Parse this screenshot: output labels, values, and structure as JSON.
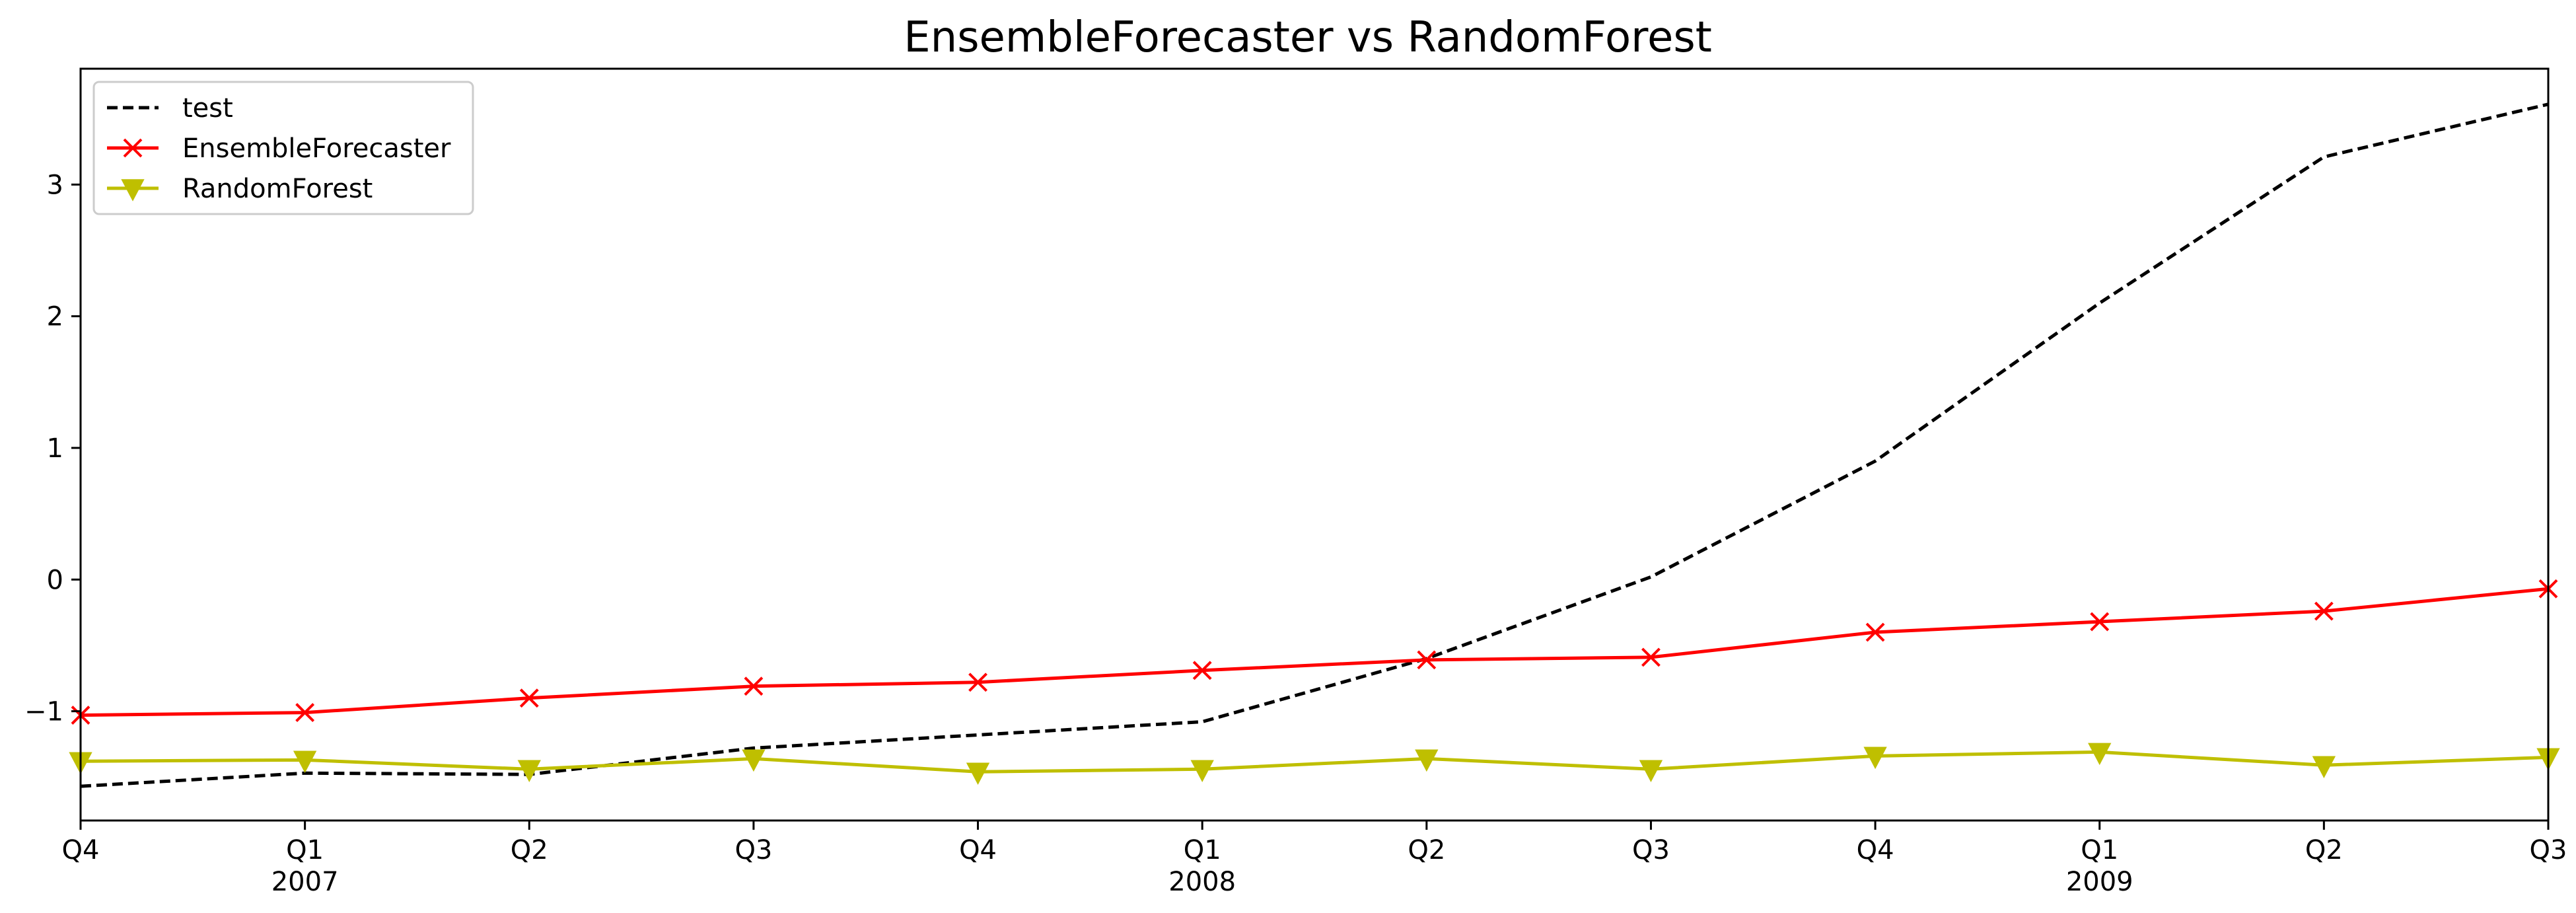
{
  "chart_data": {
    "type": "line",
    "title": "EnsembleForecaster vs RandomForest",
    "xlabel": "",
    "ylabel": "",
    "x": [
      "Q4",
      "Q1",
      "Q2",
      "Q3",
      "Q4",
      "Q1",
      "Q2",
      "Q3",
      "Q4",
      "Q1",
      "Q2",
      "Q3"
    ],
    "x_year_labels": [
      "",
      "2007",
      "",
      "",
      "",
      "2008",
      "",
      "",
      "",
      "2009",
      "",
      ""
    ],
    "ylim": [
      -1.83,
      3.88
    ],
    "yticks": [
      -1,
      0,
      1,
      2,
      3
    ],
    "ytick_labels": [
      "−1",
      "0",
      "1",
      "2",
      "3"
    ],
    "grid": false,
    "legend_position": "top-left",
    "series": [
      {
        "name": "test",
        "color": "#000000",
        "style": "dashed",
        "marker": "none",
        "values": [
          -1.57,
          -1.47,
          -1.48,
          -1.28,
          -1.18,
          -1.08,
          -0.6,
          0.02,
          0.9,
          2.1,
          3.21,
          3.61
        ]
      },
      {
        "name": "EnsembleForecaster",
        "color": "#ff0000",
        "style": "solid",
        "marker": "x",
        "values": [
          -1.03,
          -1.01,
          -0.9,
          -0.81,
          -0.78,
          -0.69,
          -0.61,
          -0.59,
          -0.4,
          -0.32,
          -0.24,
          -0.07
        ]
      },
      {
        "name": "RandomForest",
        "color": "#bfbf00",
        "style": "solid",
        "marker": "triangle-down",
        "values": [
          -1.38,
          -1.37,
          -1.44,
          -1.36,
          -1.46,
          -1.44,
          -1.36,
          -1.44,
          -1.34,
          -1.31,
          -1.41,
          -1.35
        ]
      }
    ]
  }
}
